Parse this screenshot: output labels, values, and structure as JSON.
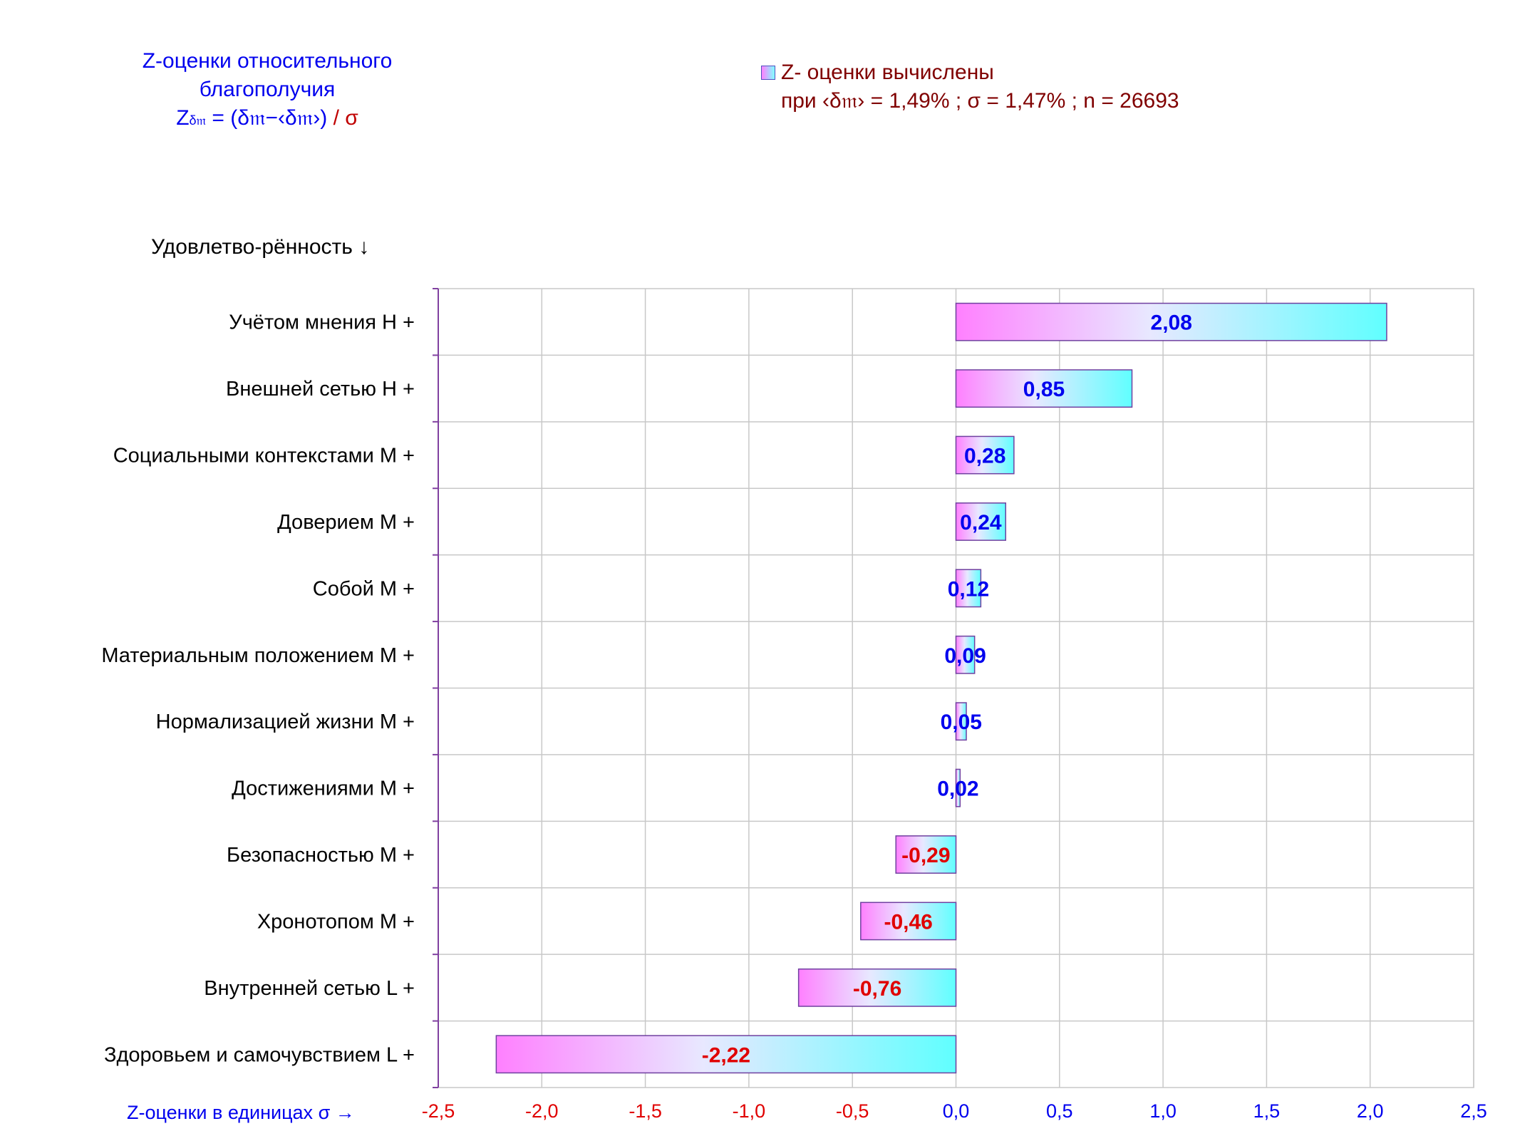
{
  "header": {
    "title_line1": "Z-оценки  относительного",
    "title_line2": "благополучия",
    "formula_z": "Z",
    "formula_sub": "δ𝔪",
    "formula_mid": " = (δ𝔪−‹δ𝔪›)",
    "formula_end": " / σ"
  },
  "legend": {
    "line1": "Z- оценки вычислены",
    "line2": "при ‹δ𝔪› = 1,49% ; σ = 1,47% ; n = 26693"
  },
  "category_axis_title": "Удовлетво-рённость ↓",
  "x_axis_label": "Z-оценки в единицах σ →",
  "colors": {
    "positive_text": "#0000ee",
    "negative_text": "#e00000",
    "bar_gradient_start": "#ff80ff",
    "bar_gradient_mid": "#e8e8ff",
    "bar_gradient_end": "#60ffff",
    "bar_border": "#7040a0",
    "grid": "#c8c8c8",
    "axis": "#8040a0"
  },
  "chart_data": {
    "type": "bar",
    "orientation": "horizontal",
    "categories": [
      "Учётом мнения  H +",
      "Внешней сетью  H +",
      "Социальными контекстами  M +",
      "Доверием  M +",
      "Собой  M +",
      "Материальным положением  M +",
      "Нормализацией жизни  M +",
      "Достижениями  M +",
      "Безопасностью  M +",
      "Хронотопом  M +",
      "Внутренней сетью  L +",
      "Здоровьем и самочувствием  L +"
    ],
    "values": [
      2.08,
      0.85,
      0.28,
      0.24,
      0.12,
      0.09,
      0.05,
      0.02,
      -0.29,
      -0.46,
      -0.76,
      -2.22
    ],
    "value_labels": [
      "2,08",
      "0,85",
      "0,28",
      "0,24",
      "0,12",
      "0,09",
      "0,05",
      "0,02",
      "-0,29",
      "-0,46",
      "-0,76",
      "-2,22"
    ],
    "xlim": [
      -2.5,
      2.5
    ],
    "xticks": [
      -2.5,
      -2.0,
      -1.5,
      -1.0,
      -0.5,
      0.0,
      0.5,
      1.0,
      1.5,
      2.0,
      2.5
    ],
    "xtick_labels": [
      "-2,5",
      "-2,0",
      "-1,5",
      "-1,0",
      "-0,5",
      "0,0",
      "0,5",
      "1,0",
      "1,5",
      "2,0",
      "2,5"
    ],
    "grid": true
  }
}
